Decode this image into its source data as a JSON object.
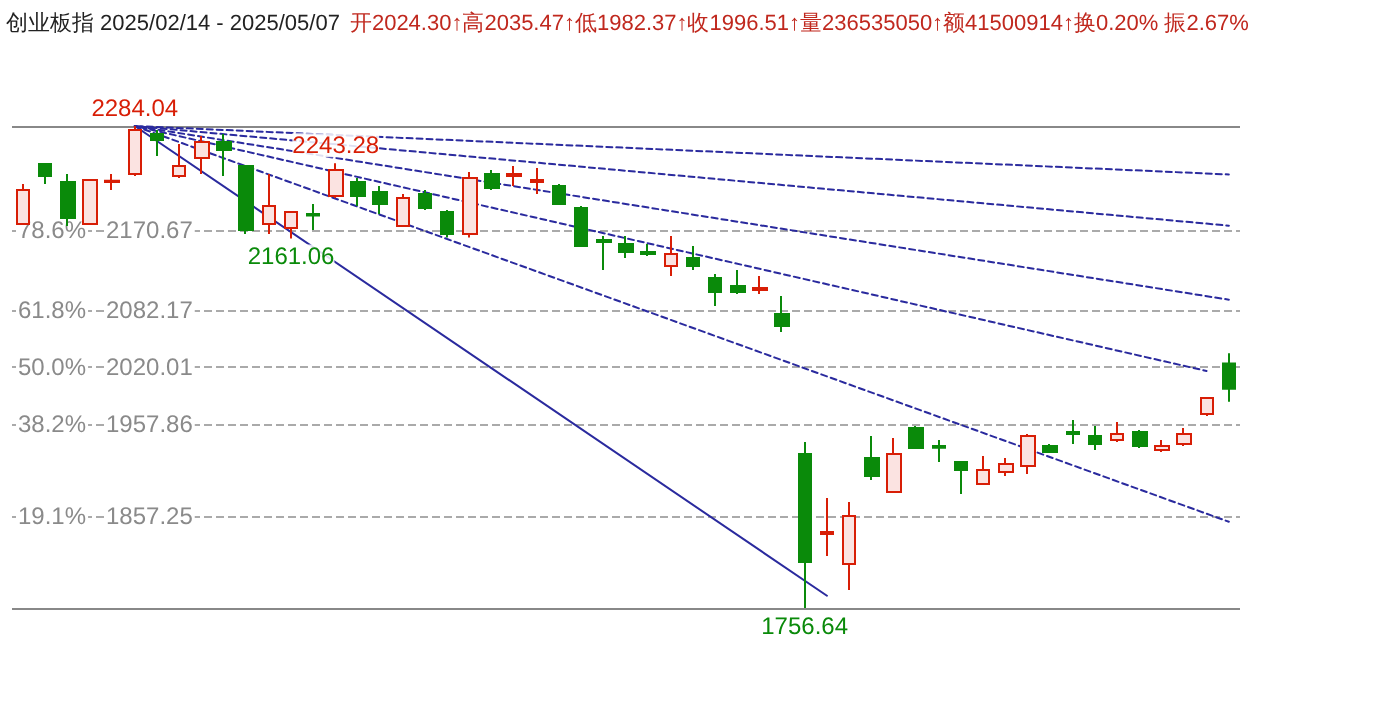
{
  "chart_data": {
    "type": "candlestick",
    "title": "创业板指 2025/02/14 - 2025/05/07",
    "subtitle": "开2024.30↑高2035.47↑低1982.37↑收1996.51↑量236535050↑额41500914↑换0.20% 振2.67%",
    "categories": [
      null,
      null,
      null,
      null,
      null,
      null,
      null,
      null,
      null,
      null,
      null,
      null,
      null,
      null,
      null,
      null,
      null,
      null,
      null,
      null,
      null,
      null,
      null,
      null,
      null,
      null,
      null,
      null,
      null,
      null,
      null,
      null,
      null,
      null,
      null,
      null,
      null,
      null,
      null,
      null,
      null,
      null,
      null,
      null,
      null,
      null,
      null,
      null,
      null,
      null,
      null,
      null,
      null,
      null,
      null
    ],
    "ohlc": [
      [
        2176.8,
        2220.6,
        2176.8,
        2214.0
      ],
      [
        2242.4,
        2242.4,
        2220.6,
        2229.3
      ],
      [
        2222.8,
        2231.5,
        2174.6,
        2183.4
      ],
      [
        2176.8,
        2225.0,
        2176.8,
        2225.0
      ],
      [
        2222.8,
        2231.5,
        2214.0,
        2224.0
      ],
      [
        2231.5,
        2284.04,
        2229.3,
        2279.7
      ],
      [
        2275.3,
        2279.7,
        2251.2,
        2268.7
      ],
      [
        2229.3,
        2264.3,
        2227.2,
        2240.3
      ],
      [
        2249.0,
        2273.1,
        2231.5,
        2266.5
      ],
      [
        2266.5,
        2275.3,
        2229.3,
        2257.8
      ],
      [
        2240.3,
        2240.3,
        2165.9,
        2170.3
      ],
      [
        2176.8,
        2231.5,
        2165.9,
        2196.5
      ],
      [
        2172.4,
        2190.0,
        2161.06,
        2190.0
      ],
      [
        2187.8,
        2198.7,
        2170.3,
        2186.0
      ],
      [
        2207.4,
        2243.28,
        2205.3,
        2235.9
      ],
      [
        2222.8,
        2227.2,
        2196.5,
        2207.4
      ],
      [
        2211.8,
        2218.4,
        2187.8,
        2198.7
      ],
      [
        2174.6,
        2209.6,
        2174.6,
        2205.3
      ],
      [
        2209.6,
        2214.0,
        2192.1,
        2194.3
      ],
      [
        2190.0,
        2192.1,
        2162.0,
        2165.9
      ],
      [
        2165.9,
        2233.7,
        2162.0,
        2227.2
      ],
      [
        2231.5,
        2235.9,
        2214.0,
        2216.2
      ],
      [
        2229.3,
        2240.3,
        2218.4,
        2231.5
      ],
      [
        2222.8,
        2238.1,
        2209.6,
        2225.0
      ],
      [
        2218.4,
        2220.6,
        2198.7,
        2198.7
      ],
      [
        2194.3,
        2196.5,
        2152.8,
        2152.8
      ],
      [
        2159.3,
        2163.7,
        2126.5,
        2157.1
      ],
      [
        2155.0,
        2163.7,
        2139.6,
        2146.2
      ],
      [
        2146.2,
        2155.0,
        2141.8,
        2144.0
      ],
      [
        2130.9,
        2163.7,
        2120.0,
        2144.0
      ],
      [
        2139.6,
        2152.8,
        2126.5,
        2130.9
      ],
      [
        2117.8,
        2122.1,
        2087.1,
        2102.4
      ],
      [
        2109.0,
        2126.5,
        2100.2,
        2102.4
      ],
      [
        2104.6,
        2120.0,
        2100.2,
        2106.8
      ],
      [
        2078.4,
        2098.0,
        2058.7,
        2065.2
      ],
      [
        1925.2,
        1938.3,
        1756.64,
        1807.0
      ],
      [
        1837.7,
        1877.1,
        1813.6,
        1839.9
      ],
      [
        1804.9,
        1872.7,
        1776.4,
        1857.4
      ],
      [
        1920.8,
        1944.9,
        1896.8,
        1901.1
      ],
      [
        1883.6,
        1942.7,
        1883.6,
        1925.2
      ],
      [
        1953.6,
        1955.8,
        1931.8,
        1931.8
      ],
      [
        1934.0,
        1940.5,
        1916.4,
        1932.0
      ],
      [
        1916.4,
        1916.4,
        1881.4,
        1907.7
      ],
      [
        1892.4,
        1923.0,
        1892.4,
        1907.7
      ],
      [
        1905.5,
        1920.8,
        1901.1,
        1914.3
      ],
      [
        1912.1,
        1947.1,
        1903.3,
        1944.9
      ],
      [
        1934.0,
        1936.1,
        1927.4,
        1927.4
      ],
      [
        1949.3,
        1962.4,
        1936.1,
        1947.1
      ],
      [
        1944.9,
        1955.8,
        1929.6,
        1936.1
      ],
      [
        1940.5,
        1960.2,
        1938.3,
        1947.1
      ],
      [
        1949.3,
        1951.5,
        1931.8,
        1934.0
      ],
      [
        1929.6,
        1940.5,
        1927.4,
        1934.0
      ],
      [
        1936.1,
        1953.6,
        1934.0,
        1947.1
      ],
      [
        1968.9,
        1986.5,
        1966.8,
        1986.5
      ],
      [
        2024.3,
        2035.47,
        1982.37,
        1996.51
      ]
    ],
    "series": [
      {
        "type": "line",
        "color": "#2a2a9e",
        "line_style": "solid",
        "values": [
          null,
          null,
          null,
          null,
          null,
          2284,
          null,
          null,
          null,
          null,
          null,
          null,
          null,
          null,
          null,
          null,
          null,
          null,
          null,
          null,
          null,
          null,
          null,
          null,
          null,
          null,
          null,
          null,
          null,
          null,
          null,
          null,
          null,
          null,
          null,
          null,
          1770,
          null,
          null,
          null,
          null,
          null,
          null,
          null,
          null,
          null,
          null,
          null,
          null,
          null,
          null,
          null,
          null,
          null,
          null
        ]
      },
      {
        "type": "line",
        "color": "#2a2a9e",
        "line_style": "dashed",
        "values": [
          null,
          null,
          null,
          null,
          null,
          2284,
          null,
          null,
          null,
          null,
          null,
          null,
          null,
          null,
          null,
          null,
          null,
          null,
          null,
          null,
          null,
          null,
          null,
          null,
          null,
          null,
          null,
          null,
          null,
          null,
          null,
          null,
          null,
          null,
          null,
          null,
          null,
          null,
          null,
          null,
          null,
          null,
          null,
          null,
          null,
          null,
          null,
          null,
          null,
          null,
          null,
          null,
          null,
          null,
          2231
        ]
      },
      {
        "type": "line",
        "color": "#2a2a9e",
        "line_style": "dashed",
        "values": [
          null,
          null,
          null,
          null,
          null,
          2284,
          null,
          null,
          null,
          null,
          null,
          null,
          null,
          null,
          null,
          null,
          null,
          null,
          null,
          null,
          null,
          null,
          null,
          null,
          null,
          null,
          null,
          null,
          null,
          null,
          null,
          null,
          null,
          null,
          null,
          null,
          null,
          null,
          null,
          null,
          null,
          null,
          null,
          null,
          null,
          null,
          null,
          null,
          null,
          null,
          null,
          null,
          null,
          null,
          2175
        ]
      },
      {
        "type": "line",
        "color": "#2a2a9e",
        "line_style": "dashed",
        "values": [
          null,
          null,
          null,
          null,
          null,
          2284,
          null,
          null,
          null,
          null,
          null,
          null,
          null,
          null,
          null,
          null,
          null,
          null,
          null,
          null,
          null,
          null,
          null,
          null,
          null,
          null,
          null,
          null,
          null,
          null,
          null,
          null,
          null,
          null,
          null,
          null,
          null,
          null,
          null,
          null,
          null,
          null,
          null,
          null,
          null,
          null,
          null,
          null,
          null,
          null,
          null,
          null,
          null,
          null,
          2094
        ]
      },
      {
        "type": "line",
        "color": "#2a2a9e",
        "line_style": "dashed",
        "values": [
          null,
          null,
          null,
          null,
          null,
          2284,
          null,
          null,
          null,
          null,
          null,
          null,
          null,
          null,
          null,
          null,
          null,
          null,
          null,
          null,
          null,
          null,
          null,
          null,
          null,
          null,
          null,
          null,
          null,
          null,
          null,
          null,
          null,
          null,
          null,
          null,
          null,
          null,
          null,
          null,
          null,
          null,
          null,
          null,
          null,
          null,
          null,
          null,
          null,
          null,
          null,
          null,
          null,
          2016,
          null
        ]
      },
      {
        "type": "line",
        "color": "#2a2a9e",
        "line_style": "dashed",
        "values": [
          null,
          null,
          null,
          null,
          null,
          2284,
          null,
          null,
          null,
          null,
          null,
          null,
          null,
          null,
          null,
          null,
          null,
          null,
          null,
          null,
          null,
          null,
          null,
          null,
          null,
          null,
          null,
          null,
          null,
          null,
          null,
          null,
          null,
          null,
          null,
          null,
          null,
          null,
          null,
          null,
          null,
          null,
          null,
          null,
          null,
          null,
          null,
          null,
          null,
          null,
          null,
          null,
          null,
          null,
          1851
        ]
      }
    ],
    "ref_lines": [
      {
        "axis": "y",
        "value": 2284.04,
        "color": "#888888",
        "line_style": "solid"
      },
      {
        "axis": "y",
        "value": 2170.67,
        "color": "#aaaaaa",
        "line_style": "dashed"
      },
      {
        "axis": "y",
        "value": 2082.17,
        "color": "#aaaaaa",
        "line_style": "dashed"
      },
      {
        "axis": "y",
        "value": 2020.01,
        "color": "#aaaaaa",
        "line_style": "dashed"
      },
      {
        "axis": "y",
        "value": 1957.86,
        "color": "#aaaaaa",
        "line_style": "dashed"
      },
      {
        "axis": "y",
        "value": 1857.25,
        "color": "#aaaaaa",
        "line_style": "dashed"
      },
      {
        "axis": "y",
        "value": 1756.64,
        "color": "#888888",
        "line_style": "solid"
      }
    ],
    "ylim": [
      1756.64,
      2284.04
    ],
    "yticks": [
      2170.67,
      2082.17,
      2020.01,
      1957.86,
      1857.25
    ],
    "annotations": [
      {
        "text": "78.6%",
        "y": 2170.67
      },
      {
        "text": "61.8%",
        "y": 2082.17
      },
      {
        "text": "50.0%",
        "y": 2020.01
      },
      {
        "text": "38.2%",
        "y": 1957.86
      },
      {
        "text": "19.1%",
        "y": 1857.25
      },
      {
        "text": "2284.04",
        "y": 2284.04
      },
      {
        "text": "2243.28",
        "y": 2243.28
      },
      {
        "text": "2161.06",
        "y": 2161.06
      },
      {
        "text": "1756.64",
        "y": 1756.64
      }
    ],
    "grid": false,
    "marker": "none"
  }
}
